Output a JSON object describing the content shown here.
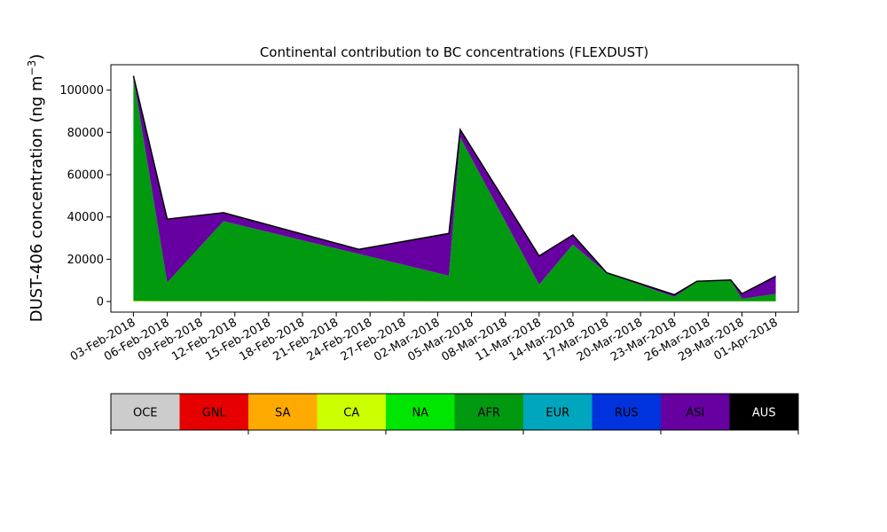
{
  "chart_data": {
    "type": "area",
    "title": "Continental contribution to BC concentrations (FLEXDUST)",
    "ylabel": "DUST-406 concentration (ng m",
    "ylabel_sup": "−3",
    "ylabel_close": ")",
    "xlabel": "",
    "ylim": [
      -5000,
      112000
    ],
    "x_axis_start": "2018-02-01",
    "x_axis_end": "2018-04-03",
    "grid": false,
    "x_ticks": [
      "2018-02-03",
      "2018-02-06",
      "2018-02-09",
      "2018-02-12",
      "2018-02-15",
      "2018-02-18",
      "2018-02-21",
      "2018-02-24",
      "2018-02-27",
      "2018-03-02",
      "2018-03-05",
      "2018-03-08",
      "2018-03-11",
      "2018-03-14",
      "2018-03-17",
      "2018-03-20",
      "2018-03-23",
      "2018-03-26",
      "2018-03-29",
      "2018-04-01"
    ],
    "x_tick_labels": [
      "03-Feb-2018",
      "06-Feb-2018",
      "09-Feb-2018",
      "12-Feb-2018",
      "15-Feb-2018",
      "18-Feb-2018",
      "21-Feb-2018",
      "24-Feb-2018",
      "27-Feb-2018",
      "02-Mar-2018",
      "05-Mar-2018",
      "08-Mar-2018",
      "11-Mar-2018",
      "14-Mar-2018",
      "17-Mar-2018",
      "20-Mar-2018",
      "23-Mar-2018",
      "26-Mar-2018",
      "29-Mar-2018",
      "01-Apr-2018"
    ],
    "y_ticks": [
      0,
      20000,
      40000,
      60000,
      80000,
      100000
    ],
    "y_tick_labels": [
      "0",
      "20000",
      "40000",
      "60000",
      "80000",
      "100000"
    ],
    "dates": [
      "2018-02-03",
      "2018-02-06",
      "2018-02-11",
      "2018-02-23",
      "2018-03-03",
      "2018-03-04",
      "2018-03-11",
      "2018-03-14",
      "2018-03-17",
      "2018-03-23",
      "2018-03-25",
      "2018-03-28",
      "2018-03-29",
      "2018-04-01"
    ],
    "series": [
      {
        "name": "OCE",
        "color": "#cccccc",
        "values": [
          0,
          0,
          0,
          0,
          0,
          0,
          0,
          0,
          0,
          0,
          0,
          0,
          0,
          0
        ]
      },
      {
        "name": "GNL",
        "color": "#e60000",
        "values": [
          0,
          0,
          0,
          0,
          0,
          0,
          0,
          0,
          0,
          0,
          0,
          0,
          0,
          0
        ]
      },
      {
        "name": "SA",
        "color": "#ffaa00",
        "values": [
          0,
          0,
          0,
          0,
          0,
          0,
          0,
          0,
          0,
          0,
          0,
          0,
          0,
          0
        ]
      },
      {
        "name": "CA",
        "color": "#ccff00",
        "values": [
          300,
          200,
          200,
          200,
          100,
          100,
          100,
          100,
          100,
          100,
          100,
          100,
          100,
          100
        ]
      },
      {
        "name": "NA",
        "color": "#00e600",
        "values": [
          0,
          0,
          0,
          0,
          0,
          0,
          0,
          0,
          0,
          0,
          0,
          0,
          0,
          0
        ]
      },
      {
        "name": "AFR",
        "color": "#009910",
        "values": [
          105700,
          8800,
          37800,
          22300,
          12100,
          77500,
          7900,
          26900,
          13300,
          2100,
          9200,
          9800,
          1200,
          3500
        ]
      },
      {
        "name": "EUR",
        "color": "#00a6bd",
        "values": [
          0,
          0,
          0,
          0,
          0,
          0,
          0,
          0,
          0,
          0,
          0,
          0,
          0,
          0
        ]
      },
      {
        "name": "RUS",
        "color": "#0033dd",
        "values": [
          0,
          0,
          0,
          0,
          0,
          0,
          0,
          0,
          0,
          0,
          0,
          0,
          0,
          0
        ]
      },
      {
        "name": "ASI",
        "color": "#6600a0",
        "values": [
          800,
          30000,
          4000,
          2200,
          20000,
          3700,
          13600,
          4500,
          200,
          1000,
          300,
          300,
          2400,
          8400
        ]
      },
      {
        "name": "AUS",
        "color": "#000000",
        "values": [
          0,
          0,
          0,
          0,
          0,
          0,
          0,
          0,
          0,
          0,
          0,
          0,
          0,
          0
        ]
      }
    ],
    "legend_position": "bottom"
  }
}
